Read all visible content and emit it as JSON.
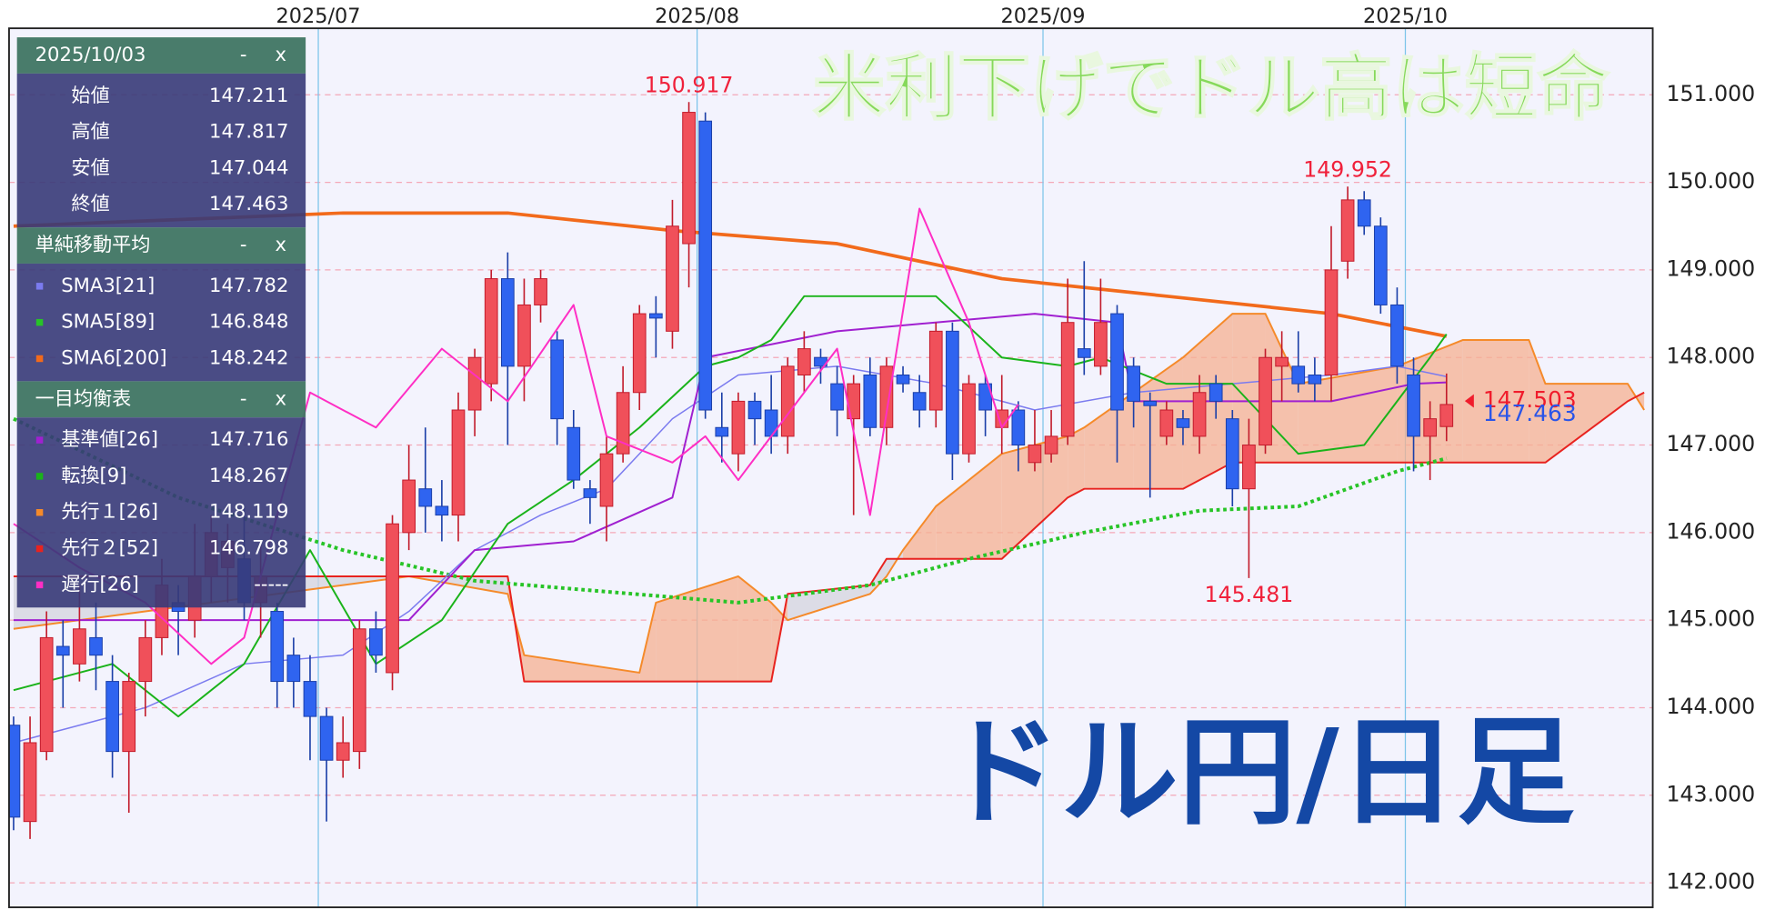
{
  "chart_data": {
    "type": "candlestick",
    "headline": "米利下げでドル高は短命",
    "caption": "ドル円/日足",
    "xlim": [
      -0.275,
      99.52
    ],
    "xticks": [
      {
        "value": 18.5,
        "label": "2025/07"
      },
      {
        "value": 41.5,
        "label": "2025/08"
      },
      {
        "value": 62.5,
        "label": "2025/09"
      },
      {
        "value": 84.5,
        "label": "2025/10"
      }
    ],
    "ylim": [
      141.72,
      151.76
    ],
    "yticks": [
      {
        "value": 142,
        "label": "142.000"
      },
      {
        "value": 143,
        "label": "143.000"
      },
      {
        "value": 144,
        "label": "144.000"
      },
      {
        "value": 145,
        "label": "145.000"
      },
      {
        "value": 146,
        "label": "146.000"
      },
      {
        "value": 147,
        "label": "147.000"
      },
      {
        "value": 148,
        "label": "148.000"
      },
      {
        "value": 149,
        "label": "149.000"
      },
      {
        "value": 150,
        "label": "150.000"
      },
      {
        "value": 151,
        "label": "151.000"
      }
    ],
    "grid": true,
    "up_color": "#f0505a",
    "down_color": "#2f64f0",
    "cloud_up_color": "#f5b090",
    "cloud_down_color": "#d4d4de",
    "open": [
      143.8,
      142.7,
      143.5,
      144.7,
      144.5,
      144.8,
      144.3,
      143.5,
      144.3,
      144.8,
      145.2,
      145.0,
      145.5,
      145.6,
      145.7,
      145.2,
      145.1,
      144.6,
      144.3,
      143.9,
      143.4,
      143.5,
      144.9,
      144.4,
      146.0,
      146.5,
      146.3,
      146.2,
      147.4,
      147.7,
      148.9,
      147.9,
      148.6,
      148.2,
      147.2,
      146.5,
      146.3,
      146.9,
      147.6,
      148.5,
      148.3,
      149.3,
      150.7,
      147.2,
      146.9,
      147.5,
      147.4,
      147.1,
      147.8,
      148.0,
      147.7,
      147.3,
      147.8,
      147.2,
      147.8,
      147.6,
      147.4,
      148.3,
      146.9,
      147.7,
      147.2,
      147.4,
      146.8,
      146.9,
      147.1,
      148.1,
      147.9,
      148.5,
      147.9,
      147.5,
      147.1,
      147.3,
      147.1,
      147.7,
      147.3,
      146.5,
      147.0,
      147.9,
      147.9,
      147.8,
      147.8,
      149.1,
      149.8,
      149.5,
      148.6,
      147.8,
      147.1,
      147.211
    ],
    "high": [
      143.9,
      143.9,
      145.1,
      145.0,
      145.4,
      145.2,
      144.6,
      144.4,
      145.0,
      145.7,
      145.4,
      146.1,
      146.2,
      146.1,
      146.3,
      145.9,
      145.2,
      144.8,
      144.6,
      144.0,
      143.9,
      145.0,
      145.1,
      146.2,
      147.0,
      147.2,
      146.6,
      147.6,
      148.1,
      149.0,
      149.2,
      148.9,
      149.0,
      148.3,
      147.4,
      146.6,
      147.1,
      147.9,
      148.6,
      148.7,
      149.8,
      150.917,
      150.8,
      147.6,
      147.6,
      147.6,
      147.8,
      148.0,
      148.3,
      148.1,
      147.9,
      147.8,
      148.0,
      148.0,
      147.9,
      147.8,
      148.4,
      148.4,
      147.8,
      147.8,
      147.8,
      147.5,
      147.4,
      147.4,
      148.9,
      149.1,
      148.9,
      148.6,
      148.0,
      147.6,
      147.5,
      147.4,
      147.8,
      147.8,
      147.4,
      147.3,
      148.1,
      148.3,
      148.3,
      148.0,
      149.5,
      149.952,
      149.9,
      149.6,
      148.8,
      148.0,
      147.5,
      147.817
    ],
    "low": [
      142.6,
      142.5,
      143.4,
      144.0,
      144.3,
      144.2,
      143.2,
      142.8,
      143.9,
      144.6,
      144.6,
      144.8,
      145.2,
      145.2,
      145.0,
      144.8,
      144.0,
      144.0,
      143.4,
      142.7,
      143.2,
      143.3,
      144.4,
      144.2,
      145.8,
      146.0,
      145.9,
      145.9,
      147.1,
      147.5,
      147.0,
      147.5,
      148.4,
      147.0,
      146.5,
      146.1,
      145.9,
      146.8,
      147.4,
      148.0,
      148.1,
      148.8,
      147.3,
      146.8,
      146.7,
      147.0,
      146.9,
      146.9,
      147.6,
      147.7,
      147.1,
      146.2,
      147.1,
      147.0,
      147.6,
      147.2,
      147.2,
      146.6,
      146.8,
      147.1,
      146.9,
      146.7,
      146.7,
      146.8,
      147.0,
      147.8,
      147.8,
      146.8,
      147.2,
      146.4,
      147.0,
      147.0,
      146.9,
      147.3,
      146.3,
      145.481,
      146.9,
      147.5,
      147.6,
      147.5,
      147.5,
      148.9,
      149.4,
      148.5,
      147.7,
      146.7,
      146.6,
      147.044
    ],
    "close": [
      142.75,
      143.6,
      144.8,
      144.6,
      144.9,
      144.6,
      143.5,
      144.3,
      144.8,
      145.4,
      145.1,
      145.5,
      146.0,
      145.9,
      145.2,
      145.5,
      144.3,
      144.3,
      143.9,
      143.4,
      143.6,
      144.9,
      144.6,
      146.1,
      146.6,
      146.3,
      146.2,
      147.4,
      148.0,
      148.9,
      147.9,
      148.6,
      148.9,
      147.3,
      146.6,
      146.4,
      146.9,
      147.6,
      148.5,
      148.45,
      149.5,
      150.8,
      147.4,
      147.1,
      147.5,
      147.3,
      147.1,
      147.9,
      148.1,
      147.9,
      147.4,
      147.7,
      147.2,
      147.9,
      147.7,
      147.4,
      148.3,
      146.9,
      147.7,
      147.4,
      147.4,
      147.0,
      147.0,
      147.1,
      148.4,
      148.0,
      148.4,
      147.4,
      147.5,
      147.45,
      147.4,
      147.2,
      147.6,
      147.5,
      146.5,
      147.0,
      148.0,
      148.0,
      147.7,
      147.7,
      149.0,
      149.8,
      149.5,
      148.6,
      147.9,
      147.1,
      147.3,
      147.463
    ],
    "series": [
      {
        "name": "SMA3[21]",
        "color": "#7b7bef",
        "style": "thin",
        "legend_value": 147.782,
        "x": [
          0,
          8,
          14,
          20,
          24,
          28,
          32,
          36,
          40,
          44,
          50,
          56,
          62,
          68,
          74,
          80,
          84,
          87
        ],
        "values": [
          143.6,
          144.0,
          144.5,
          144.6,
          145.1,
          145.8,
          146.2,
          146.5,
          147.3,
          147.8,
          147.9,
          147.7,
          147.4,
          147.6,
          147.7,
          147.8,
          147.9,
          147.782
        ]
      },
      {
        "name": "SMA5[89]",
        "color": "#27c427",
        "style": "dotted",
        "legend_value": 146.848,
        "x": [
          0,
          10,
          20,
          28,
          44,
          52,
          58,
          65,
          72,
          78,
          84,
          87
        ],
        "values": [
          147.3,
          146.4,
          145.8,
          145.45,
          145.2,
          145.4,
          145.7,
          146.0,
          146.25,
          146.3,
          146.7,
          146.848
        ]
      },
      {
        "name": "SMA6[200]",
        "color": "#f26a1b",
        "style": "thick",
        "legend_value": 148.242,
        "x": [
          0,
          20,
          30,
          40,
          50,
          60,
          70,
          80,
          87
        ],
        "values": [
          149.5,
          149.65,
          149.65,
          149.45,
          149.3,
          148.9,
          148.7,
          148.5,
          148.242
        ]
      },
      {
        "name": "基準値[26]",
        "color": "#a020d0",
        "style": "normal",
        "legend_value": 147.716,
        "x": [
          0,
          24,
          28,
          34,
          40,
          42,
          50,
          62,
          67,
          68,
          80,
          85,
          87
        ],
        "values": [
          145.0,
          145.0,
          145.8,
          145.9,
          146.4,
          148.0,
          148.3,
          148.5,
          148.4,
          147.5,
          147.5,
          147.7,
          147.716
        ]
      },
      {
        "name": "転換[9]",
        "color": "#1ab31a",
        "style": "normal",
        "legend_value": 148.267,
        "x": [
          0,
          6,
          10,
          14,
          18,
          22,
          26,
          30,
          34,
          38,
          42,
          44,
          46,
          48,
          56,
          60,
          64,
          66,
          70,
          74,
          78,
          82,
          86,
          87
        ],
        "values": [
          144.2,
          144.5,
          143.9,
          144.5,
          145.8,
          144.5,
          145.0,
          146.1,
          146.6,
          147.2,
          147.9,
          148.0,
          148.2,
          148.7,
          148.7,
          148.0,
          147.9,
          148.0,
          147.7,
          147.7,
          146.9,
          147.0,
          148.0,
          148.267
        ]
      },
      {
        "name": "先行１[26]",
        "color": "#f58a2a",
        "style": "normal",
        "legend_value": 148.119,
        "x": [
          0,
          8,
          16,
          24,
          30,
          31,
          38,
          39,
          44,
          46,
          47,
          52,
          53,
          54,
          56,
          60,
          64,
          65,
          68,
          71,
          74,
          76,
          78,
          84,
          88,
          92,
          93,
          98,
          99
        ],
        "values": [
          144.9,
          145.1,
          145.3,
          145.5,
          145.3,
          144.6,
          144.4,
          145.2,
          145.5,
          145.2,
          145.0,
          145.3,
          145.5,
          145.8,
          146.3,
          146.9,
          147.1,
          147.2,
          147.6,
          148.0,
          148.5,
          148.5,
          147.7,
          147.9,
          148.2,
          148.2,
          147.7,
          147.7,
          147.4
        ]
      },
      {
        "name": "先行２[52]",
        "color": "#e8231f",
        "style": "normal",
        "legend_value": 146.798,
        "x": [
          0,
          8,
          16,
          24,
          30,
          31,
          38,
          39,
          44,
          46,
          47,
          52,
          53,
          54,
          56,
          60,
          64,
          65,
          68,
          71,
          74,
          76,
          78,
          84,
          88,
          92,
          93,
          98,
          99
        ],
        "values": [
          145.5,
          145.5,
          145.5,
          145.5,
          145.5,
          144.3,
          144.3,
          144.3,
          144.3,
          144.3,
          145.3,
          145.4,
          145.7,
          145.7,
          145.7,
          145.7,
          146.4,
          146.5,
          146.5,
          146.5,
          146.8,
          146.8,
          146.8,
          146.8,
          146.8,
          146.8,
          146.8,
          147.5,
          147.6
        ]
      },
      {
        "name": "遅行[26]",
        "color": "#ff2ec4",
        "style": "normal",
        "legend_value": "-----",
        "x": [
          0,
          4,
          8,
          12,
          14,
          18,
          22,
          26,
          30,
          34,
          36,
          40,
          42,
          44,
          48,
          50,
          52,
          55,
          58,
          60,
          61
        ],
        "values": [
          146.1,
          145.6,
          145.2,
          144.5,
          144.8,
          147.6,
          147.2,
          148.1,
          147.5,
          148.6,
          147.1,
          146.8,
          147.1,
          146.6,
          147.6,
          148.1,
          146.2,
          149.7,
          148.4,
          147.2,
          147.463
        ]
      }
    ],
    "extremes": [
      {
        "x": 41,
        "value": 150.917
      },
      {
        "x": 81,
        "value": 149.952
      },
      {
        "x": 75,
        "value": 145.481
      }
    ],
    "price_markers": [
      {
        "value": 147.503,
        "color": "#f01c2c"
      },
      {
        "value": 147.463,
        "color": "#2a55e8"
      }
    ],
    "panel": {
      "date": "2025/10/03",
      "minimize": "-",
      "close": "x",
      "ohlc": [
        {
          "label": "始値",
          "value": 147.211
        },
        {
          "label": "高値",
          "value": 147.817
        },
        {
          "label": "安値",
          "value": 147.044
        },
        {
          "label": "終値",
          "value": 147.463
        }
      ],
      "sma_title": "単純移動平均",
      "ichimoku_title": "一目均衡表"
    }
  }
}
